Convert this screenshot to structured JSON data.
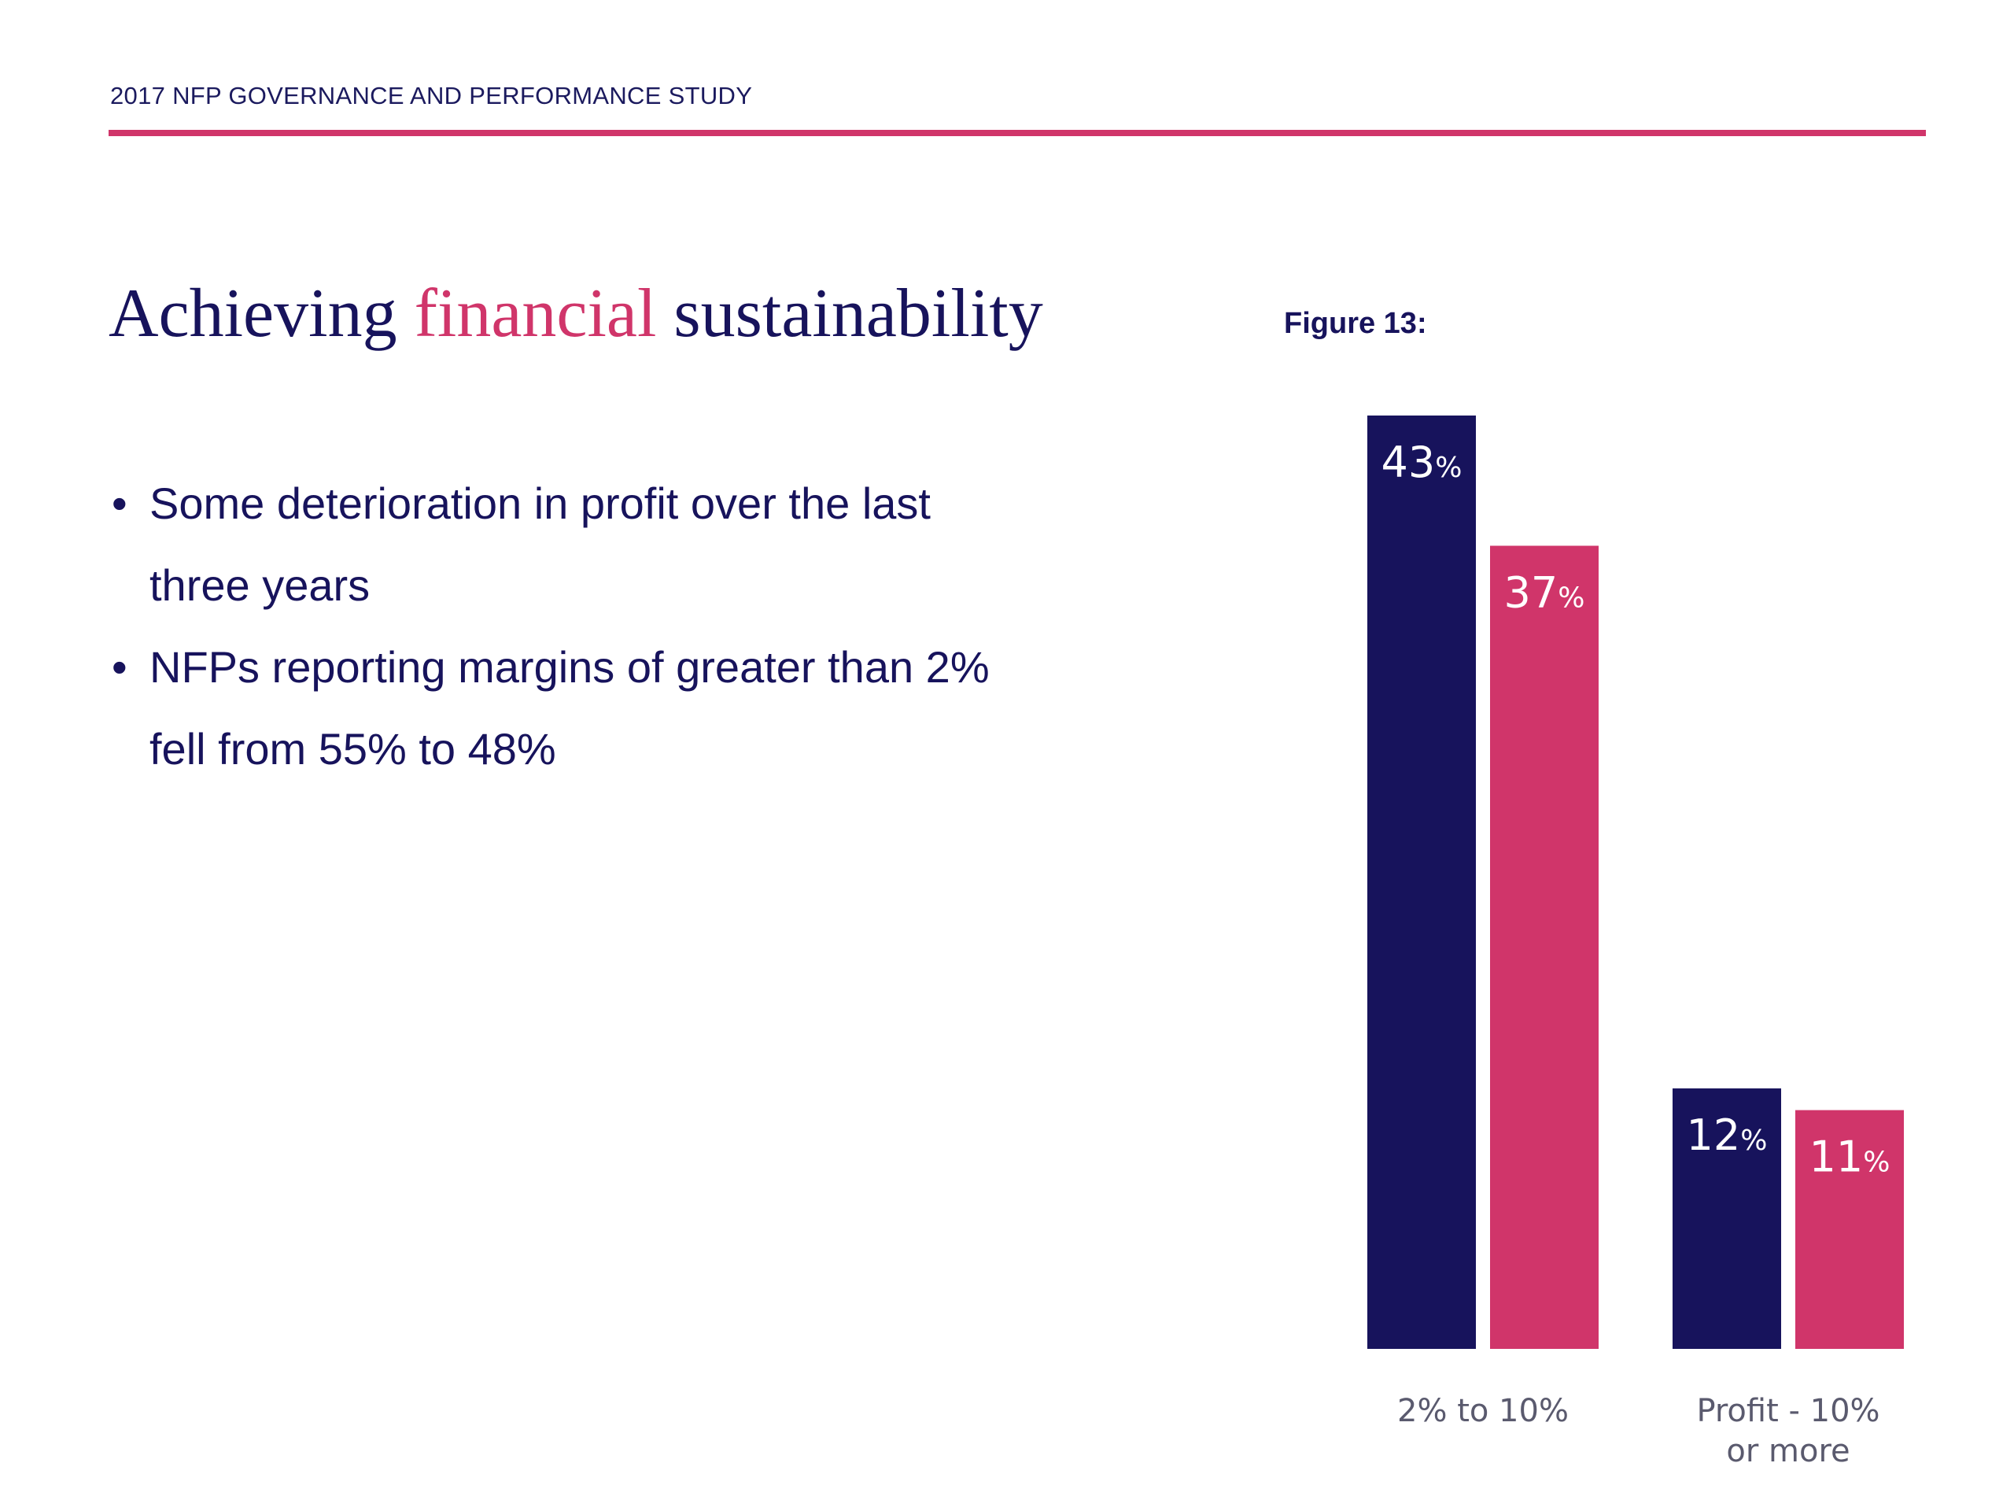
{
  "header": {
    "study_title": "2017 NFP GOVERNANCE AND PERFORMANCE STUDY"
  },
  "slide": {
    "title_part1": "Achieving ",
    "title_accent": "financial",
    "title_part2": " sustainability",
    "bullets": [
      "Some deterioration in profit over the last three years",
      "NFPs reporting margins of greater than 2% fell from 55% to 48%"
    ]
  },
  "figure": {
    "label": "Figure 13:"
  },
  "colors": {
    "navy": "#17135c",
    "pink": "#d0356a"
  },
  "chart_data": {
    "type": "bar",
    "title": "",
    "categories": [
      {
        "line1": "2% to 10%",
        "line2": ""
      },
      {
        "line1": "Profit - 10%",
        "line2": "or more"
      }
    ],
    "series": [
      {
        "color": "#17135c",
        "values": [
          43,
          12
        ],
        "labels": [
          "43",
          "12"
        ]
      },
      {
        "color": "#d0356a",
        "values": [
          37,
          11
        ],
        "labels": [
          "37",
          "11"
        ]
      }
    ],
    "unit_suffix": "%",
    "ylim": [
      0,
      43
    ],
    "grid": false,
    "legend": "none"
  }
}
